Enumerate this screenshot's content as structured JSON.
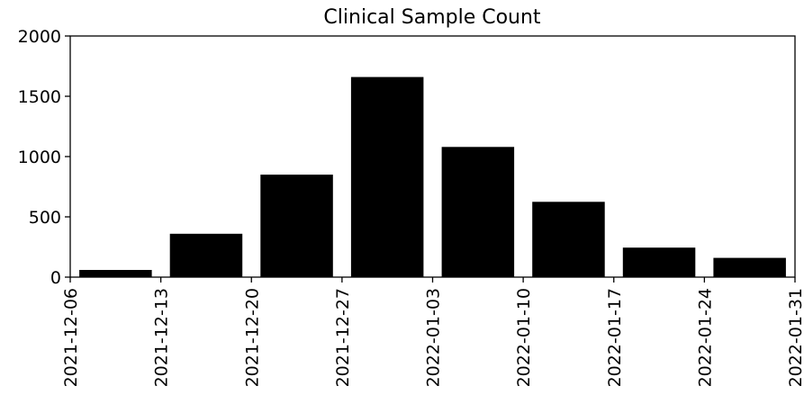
{
  "chart_data": {
    "type": "bar",
    "title": "Clinical Sample Count",
    "xlabel": "",
    "ylabel": "",
    "ylim": [
      0,
      2000
    ],
    "yticks": [
      "0",
      "500",
      "1000",
      "1500",
      "2000"
    ],
    "xticks": [
      "2021-12-06",
      "2021-12-13",
      "2021-12-20",
      "2021-12-27",
      "2022-01-03",
      "2022-01-10",
      "2022-01-17",
      "2022-01-24",
      "2022-01-31"
    ],
    "categories": [
      "2021-12-06",
      "2021-12-13",
      "2021-12-20",
      "2021-12-27",
      "2022-01-03",
      "2022-01-10",
      "2022-01-17",
      "2022-01-24"
    ],
    "values": [
      60,
      360,
      850,
      1660,
      1080,
      625,
      245,
      160
    ],
    "bar_color": "#000000",
    "grid": false,
    "legend": "none"
  }
}
